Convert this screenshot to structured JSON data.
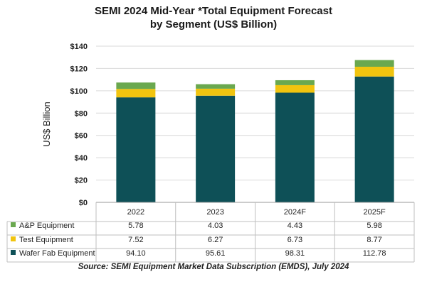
{
  "title_line1": "SEMI 2024 Mid-Year *Total Equipment Forecast",
  "title_line2": "by Segment (US$ Billion)",
  "source": "Source: SEMI Equipment Market Data Subscription (EMDS), July 2024",
  "colors": {
    "wafer_fab": "#0e5057",
    "test": "#f1c40f",
    "ap": "#6aa84f",
    "grid": "#d9d9d9",
    "table_border": "#bfbfbf"
  },
  "chart_data": {
    "type": "bar",
    "stacked": true,
    "title": "SEMI 2024 Mid-Year *Total Equipment Forecast by Segment (US$ Billion)",
    "ylabel": "US$ Billion",
    "ylim": [
      0,
      140
    ],
    "yticks": [
      0,
      20,
      40,
      60,
      80,
      100,
      120,
      140
    ],
    "ytick_labels": [
      "$0",
      "$20",
      "$40",
      "$60",
      "$80",
      "$100",
      "$120",
      "$140"
    ],
    "categories": [
      "2022",
      "2023",
      "2024F",
      "2025F"
    ],
    "series": [
      {
        "name": "A&P Equipment",
        "key": "ap",
        "values": [
          5.78,
          4.03,
          4.43,
          5.98
        ],
        "labels": [
          "5.78",
          "4.03",
          "4.43",
          "5.98"
        ]
      },
      {
        "name": "Test Equipment",
        "key": "test",
        "values": [
          7.52,
          6.27,
          6.73,
          8.77
        ],
        "labels": [
          "7.52",
          "6.27",
          "6.73",
          "8.77"
        ]
      },
      {
        "name": "Wafer Fab Equipment",
        "key": "wafer_fab",
        "values": [
          94.1,
          95.61,
          98.31,
          112.78
        ],
        "labels": [
          "94.10",
          "95.61",
          "98.31",
          "112.78"
        ]
      }
    ],
    "stack_order_bottom_to_top": [
      "wafer_fab",
      "test",
      "ap"
    ]
  }
}
